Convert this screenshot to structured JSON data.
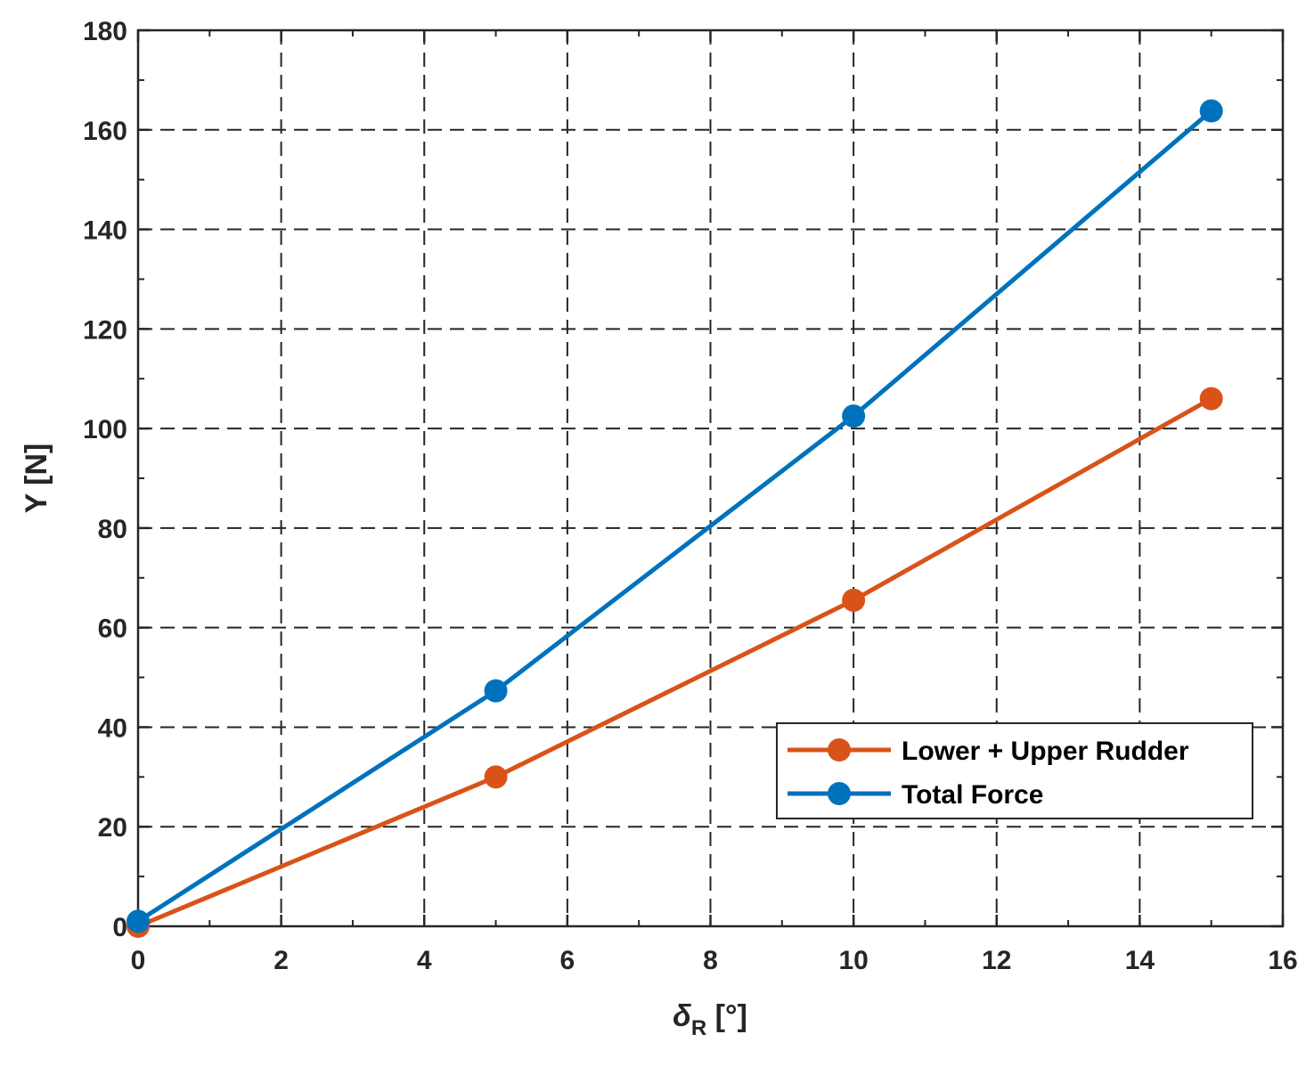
{
  "chart_data": {
    "type": "line",
    "title": "",
    "xlabel": "δ",
    "xlabel_sub": "R",
    "xlabel_unit": " [°]",
    "ylabel": "Y [N]",
    "xlim": [
      0,
      16
    ],
    "ylim": [
      0,
      180
    ],
    "xticks": [
      0,
      2,
      4,
      6,
      8,
      10,
      12,
      14,
      16
    ],
    "yticks": [
      0,
      20,
      40,
      60,
      80,
      100,
      120,
      140,
      160,
      180
    ],
    "x_minor_step": 1,
    "y_minor_step": 10,
    "grid": true,
    "legend_position": "lower-right",
    "series": [
      {
        "name": "Lower + Upper Rudder",
        "color": "#d95319",
        "x": [
          0,
          5,
          10,
          15
        ],
        "y": [
          0,
          30,
          65.5,
          106
        ]
      },
      {
        "name": "Total Force",
        "color": "#0072bd",
        "x": [
          0,
          5,
          10,
          15
        ],
        "y": [
          1,
          47.3,
          102.5,
          163.8
        ]
      }
    ]
  }
}
